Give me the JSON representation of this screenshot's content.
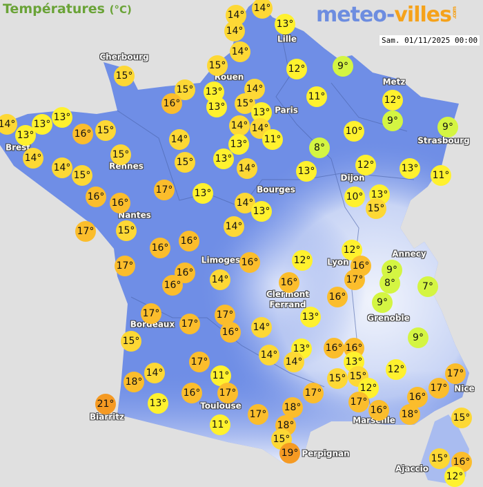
{
  "header": {
    "title": "Températures",
    "unit": "(°C)",
    "logo_main": "meteo-",
    "logo_accent": "villes",
    "logo_suffix": ".com",
    "datetime": "Sam. 01/11/2025 00:00"
  },
  "colors": {
    "background": "#e0e0e0",
    "land": "#6f8ee6",
    "cold": "#d4f542",
    "cool": "#fff12e",
    "mild": "#fdd835",
    "warm": "#fbbd2c",
    "hot": "#f59a23"
  },
  "cities": [
    "Cherbourg",
    "Lille",
    "Rouen",
    "Paris",
    "Metz",
    "Strasbourg",
    "Brest",
    "Rennes",
    "Dijon",
    "Bourges",
    "Nantes",
    "Limoges",
    "Annecy",
    "Lyon",
    "Clermont\nFerrand",
    "Grenoble",
    "Bordeaux",
    "Nice",
    "Toulouse",
    "Marseille",
    "Biarritz",
    "Perpignan",
    "Ajaccio"
  ],
  "temperatures": [
    14,
    14,
    13,
    14,
    14,
    15,
    12,
    9,
    15,
    15,
    13,
    14,
    16,
    13,
    15,
    13,
    11,
    12,
    13,
    14,
    13,
    13,
    16,
    15,
    14,
    14,
    11,
    9,
    9,
    10,
    14,
    13,
    15,
    8,
    14,
    14,
    15,
    15,
    13,
    14,
    12,
    13,
    11,
    13,
    17,
    13,
    16,
    16,
    10,
    13,
    15,
    14,
    13,
    17,
    15,
    14,
    16,
    16,
    12,
    16,
    17,
    9,
    8,
    7,
    9,
    12,
    16,
    17,
    16,
    16,
    14,
    16,
    16,
    17,
    17,
    16,
    17,
    14,
    13,
    9,
    15,
    13,
    14,
    14,
    16,
    16,
    13,
    17,
    14,
    11,
    12,
    15,
    15,
    17,
    18,
    17,
    17,
    16,
    17,
    12,
    17,
    16,
    16,
    21,
    13,
    18,
    17,
    18,
    15,
    11,
    18,
    15,
    19,
    15,
    16,
    12
  ],
  "unit_symbol": "°"
}
